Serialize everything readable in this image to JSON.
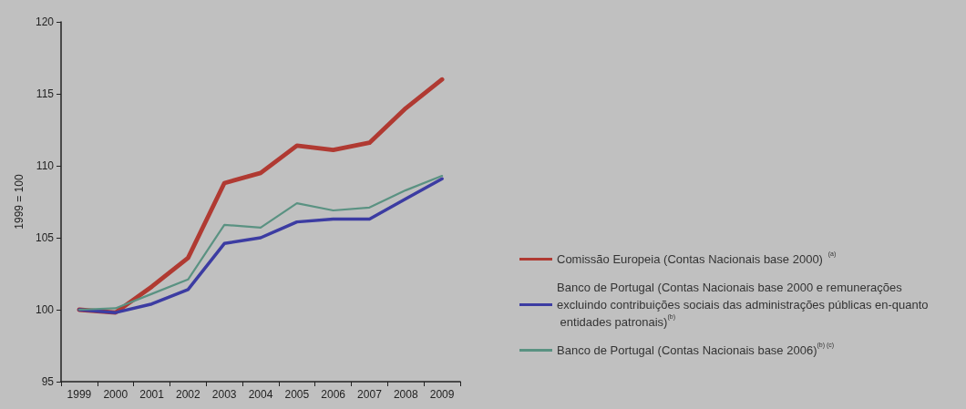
{
  "chart_data": {
    "type": "line",
    "ylabel": "1999 = 100",
    "categories": [
      "1999",
      "2000",
      "2001",
      "2002",
      "2003",
      "2004",
      "2005",
      "2006",
      "2007",
      "2008",
      "2009"
    ],
    "ylim": [
      95,
      120
    ],
    "yticks": [
      95,
      100,
      105,
      110,
      115,
      120
    ],
    "grid": false,
    "legend": "right",
    "marker": "none",
    "line_style": "solid",
    "series": [
      {
        "name": "Comissão Europeia (Contas Nacionais base 2000)$^{(a)}$",
        "color": "#b03a32",
        "values": [
          100,
          99.8,
          101.6,
          103.6,
          108.8,
          109.5,
          111.4,
          111.1,
          111.6,
          114.0,
          116.0
        ]
      },
      {
        "name": "Banco de Portugal (Contas Nacionais base 2000 e remunerações excluindo contribuições sociais das administrações públicas en-quanto entidades patronais)$^{(b)}$",
        "color": "#3c3ca2",
        "values": [
          100,
          99.8,
          100.4,
          101.4,
          104.6,
          105.0,
          106.1,
          106.3,
          106.3,
          107.7,
          109.1
        ]
      },
      {
        "name": "Banco de Portugal (Contas Nacionais base 2006)$^{(b) (c)}$",
        "color": "#5a9282",
        "values": [
          100,
          100.1,
          101.1,
          102.1,
          105.9,
          105.7,
          107.4,
          106.9,
          107.1,
          108.3,
          109.3
        ]
      }
    ]
  }
}
